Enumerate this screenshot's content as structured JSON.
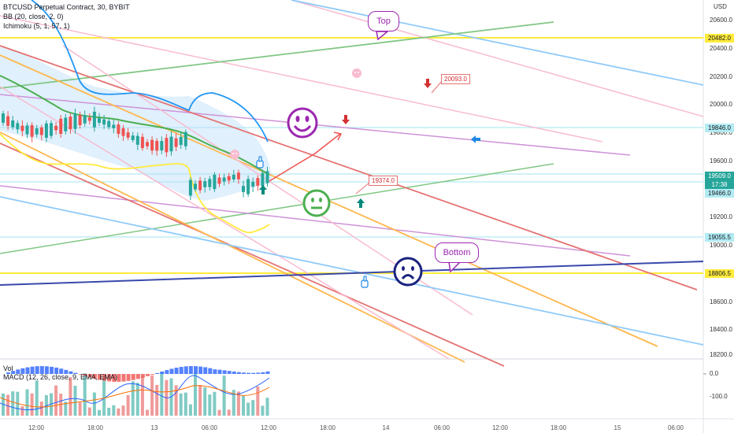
{
  "legend": {
    "symbol": "BTCUSD Perpetual Contract, 30, BYBIT",
    "bb": "BB (20, close, 2, 0)",
    "ichimoku": "Ichimoku (5, 1, 57, 1)",
    "vol": "Vol",
    "macd": "MACD (12, 26, close, 9, EMA, EMA)"
  },
  "price_axis": {
    "unit": "USD",
    "ticks": [
      "20600.0",
      "20400.0",
      "20200.0",
      "20000.0",
      "19800.0",
      "19600.0",
      "19400.0",
      "19200.0",
      "19000.0",
      "18800.0",
      "18600.0",
      "18400.0",
      "18200.0"
    ]
  },
  "price_tags": [
    {
      "label": "20482.0",
      "bg": "#ffeb3b",
      "fg": "#131722"
    },
    {
      "label": "19846.0",
      "bg": "#b2ebf2",
      "fg": "#131722"
    },
    {
      "label": "19509.0",
      "bg": "#26a69a",
      "fg": "#ffffff"
    },
    {
      "label": "17:38",
      "bg": "#26a69a",
      "fg": "#ffffff"
    },
    {
      "label": "19466.0",
      "bg": "#b2ebf2",
      "fg": "#131722"
    },
    {
      "label": "19055.5",
      "bg": "#b2ebf2",
      "fg": "#131722"
    },
    {
      "label": "18806.5",
      "bg": "#ffeb3b",
      "fg": "#131722"
    }
  ],
  "macd_axis": {
    "ticks": [
      "0.0",
      "-100.0"
    ]
  },
  "time_axis": {
    "labels": [
      "12:00",
      "18:00",
      "13",
      "06:00",
      "12:00",
      "18:00",
      "14",
      "06:00",
      "12:00",
      "18:00",
      "15",
      "06:00"
    ]
  },
  "annotations": {
    "top": "Top",
    "bottom": "Bottom",
    "note1": "20093.0",
    "note2": "19374.0"
  },
  "colors": {
    "up": "#26a69a",
    "down": "#ef5350",
    "bb_basis": "#4caf50",
    "bb_upper": "#2196f3",
    "yellow_level": "#ffeb3b",
    "cloud": "#bbdefb",
    "purple": "#9c27b0",
    "navy": "#1a237e"
  },
  "icons": [
    "smiley-happy-icon",
    "smiley-neutral-icon",
    "smiley-sad-icon",
    "pig-icon",
    "hand-pointer-icon",
    "arrow-up-icon",
    "arrow-down-icon",
    "arrow-left-icon"
  ]
}
